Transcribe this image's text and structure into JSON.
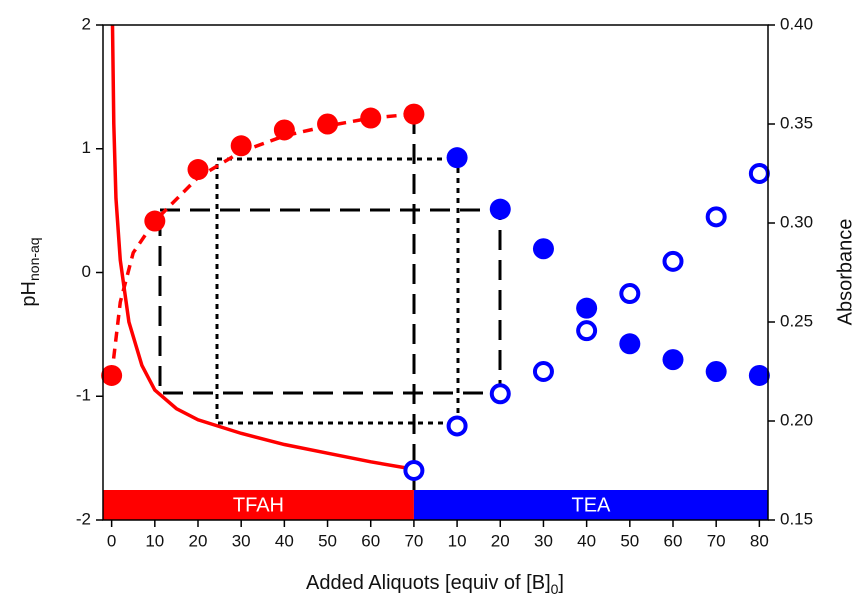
{
  "chart_data": {
    "type": "scatter",
    "xlabel": {
      "text": "Added Aliquots [equiv of [B]",
      "sub": "0",
      "end": "]"
    },
    "ylabel": {
      "text": "pH",
      "sub": "non-aq"
    },
    "y2label": "Absorbance",
    "annotations": [
      {
        "text": "TFAH",
        "color": "#ff0000"
      },
      {
        "text": "TEA",
        "color": "#0000ff"
      }
    ],
    "xlim": [
      -2,
      152
    ],
    "xticks": [
      0,
      10,
      20,
      30,
      40,
      50,
      60,
      70,
      {
        "value": 80,
        "label": "10"
      },
      {
        "value": 90,
        "label": "20"
      },
      {
        "value": 100,
        "label": "30"
      },
      {
        "value": 110,
        "label": "40"
      },
      {
        "value": 120,
        "label": "50"
      },
      {
        "value": 130,
        "label": "60"
      },
      {
        "value": 140,
        "label": "70"
      },
      {
        "value": 150,
        "label": "80"
      }
    ],
    "ylim": [
      -2,
      2
    ],
    "yticks": [
      -2,
      -1,
      0,
      1,
      2
    ],
    "y2lim": [
      0.15,
      0.4
    ],
    "y2ticks": [
      0.15,
      {
        "value": 0.2,
        "label": "0.20"
      },
      0.25,
      {
        "value": 0.3,
        "label": "0.30"
      },
      0.35,
      {
        "value": 0.4,
        "label": "0.40"
      }
    ],
    "series": [
      {
        "style": "filled",
        "axis": "y2",
        "color": "#ff0000",
        "x": [
          0,
          10,
          20,
          30,
          40,
          50,
          60,
          70
        ],
        "values": [
          0.223,
          0.301,
          0.327,
          0.339,
          0.347,
          0.35,
          0.353,
          0.355
        ]
      },
      {
        "style": "filled",
        "axis": "y2",
        "color": "#0000ff",
        "x": [
          80,
          90,
          100,
          110,
          120,
          130,
          140,
          150
        ],
        "values": [
          0.333,
          0.307,
          0.287,
          0.257,
          0.239,
          0.231,
          0.225,
          0.223
        ]
      },
      {
        "style": "open",
        "axis": "y",
        "color": "#0000ff",
        "x": [
          70,
          80,
          90,
          100,
          110,
          120,
          130,
          140,
          150
        ],
        "values": [
          -1.6,
          -1.24,
          -0.98,
          -0.8,
          -0.47,
          -0.17,
          0.09,
          0.45,
          0.8
        ]
      },
      {
        "style": "solid",
        "axis": "y",
        "color": "#ff0000",
        "x": [
          0.2,
          0.5,
          1,
          2,
          4,
          7,
          10,
          15,
          20,
          30,
          40,
          50,
          60,
          70
        ],
        "values": [
          2,
          1.2,
          0.6,
          0.1,
          -0.4,
          -0.75,
          -0.95,
          -1.1,
          -1.19,
          -1.3,
          -1.39,
          -1.46,
          -1.53,
          -1.59
        ]
      },
      {
        "style": "dashed",
        "axis": "y2",
        "color": "#ff0000",
        "x": [
          0,
          2,
          5,
          10,
          20,
          30,
          40,
          50,
          60,
          70
        ],
        "values": [
          0.223,
          0.26,
          0.285,
          0.301,
          0.323,
          0.336,
          0.344,
          0.349,
          0.353,
          0.355
        ]
      }
    ]
  }
}
